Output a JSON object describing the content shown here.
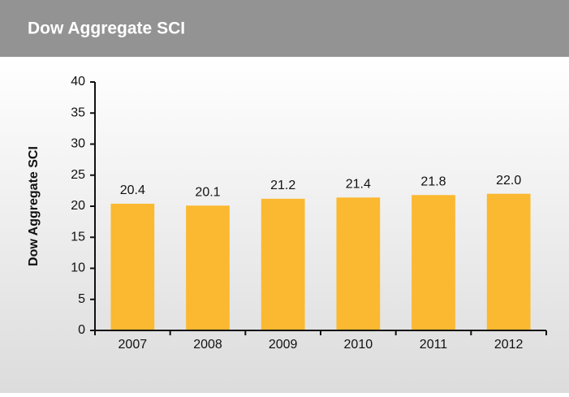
{
  "chart_data": {
    "type": "bar",
    "title": "Dow Aggregate SCI",
    "y_label": "Dow Aggregate SCI",
    "categories": [
      "2007",
      "2008",
      "2009",
      "2010",
      "2011",
      "2012"
    ],
    "values": [
      20.4,
      20.1,
      21.2,
      21.4,
      21.8,
      22.0
    ],
    "value_labels": [
      "20.4",
      "20.1",
      "21.2",
      "21.4",
      "21.8",
      "22.0"
    ],
    "color": "#fbb931",
    "ylim": [
      0,
      40
    ],
    "yticks": [
      0,
      5,
      10,
      15,
      20,
      25,
      30,
      35,
      40
    ]
  }
}
